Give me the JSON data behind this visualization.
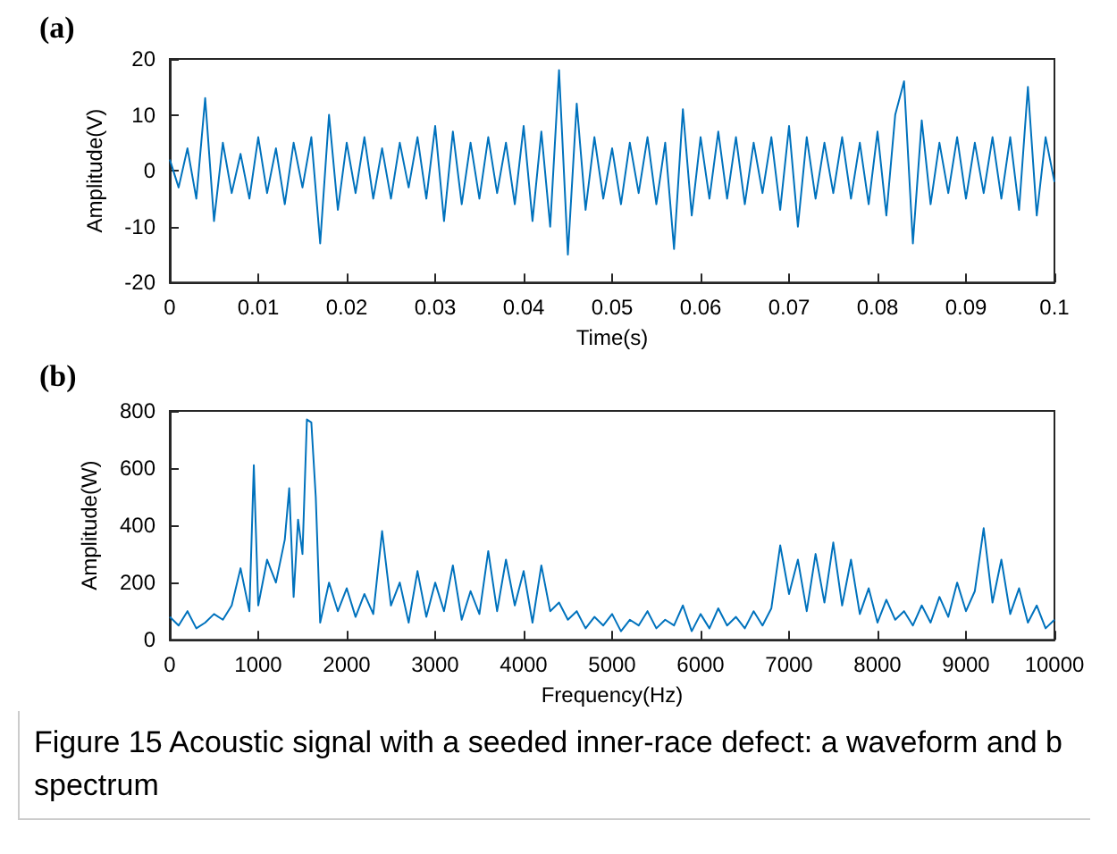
{
  "chart_data": [
    {
      "type": "line",
      "xlabel": "Time(s)",
      "ylabel": "Amplitude(V)",
      "annotations": [
        "(a)"
      ],
      "xlim": [
        0,
        0.1
      ],
      "xticks": [
        0,
        0.01,
        0.02,
        0.03,
        0.04,
        0.05,
        0.06,
        0.07,
        0.08,
        0.09,
        0.1
      ],
      "ylim": [
        -20,
        20
      ],
      "yticks": [
        -20,
        -10,
        0,
        10,
        20
      ],
      "grid": false,
      "marker": "none",
      "line_style": "solid",
      "series": [
        {
          "color": "#0072bd",
          "x": [
            0,
            0.001,
            0.002,
            0.003,
            0.004,
            0.005,
            0.006,
            0.007,
            0.008,
            0.009,
            0.01,
            0.011,
            0.012,
            0.013,
            0.014,
            0.015,
            0.016,
            0.017,
            0.018,
            0.019,
            0.02,
            0.021,
            0.022,
            0.023,
            0.024,
            0.025,
            0.026,
            0.027,
            0.028,
            0.029,
            0.03,
            0.031,
            0.032,
            0.033,
            0.034,
            0.035,
            0.036,
            0.037,
            0.038,
            0.039,
            0.04,
            0.041,
            0.042,
            0.043,
            0.044,
            0.045,
            0.046,
            0.047,
            0.048,
            0.049,
            0.05,
            0.051,
            0.052,
            0.053,
            0.054,
            0.055,
            0.056,
            0.057,
            0.058,
            0.059,
            0.06,
            0.061,
            0.062,
            0.063,
            0.064,
            0.065,
            0.066,
            0.067,
            0.068,
            0.069,
            0.07,
            0.071,
            0.072,
            0.073,
            0.074,
            0.075,
            0.076,
            0.077,
            0.078,
            0.079,
            0.08,
            0.081,
            0.082,
            0.083,
            0.084,
            0.085,
            0.086,
            0.087,
            0.088,
            0.089,
            0.09,
            0.091,
            0.092,
            0.093,
            0.094,
            0.095,
            0.096,
            0.097,
            0.098,
            0.099,
            0.1
          ],
          "values": [
            2,
            -3,
            4,
            -5,
            13,
            -9,
            5,
            -4,
            3,
            -5,
            6,
            -4,
            4,
            -6,
            5,
            -3,
            6,
            -13,
            10,
            -7,
            5,
            -4,
            6,
            -5,
            4,
            -5,
            5,
            -3,
            6,
            -5,
            8,
            -9,
            7,
            -6,
            5,
            -5,
            6,
            -4,
            5,
            -6,
            8,
            -9,
            7,
            -10,
            18,
            -15,
            12,
            -7,
            6,
            -5,
            4,
            -6,
            5,
            -4,
            6,
            -6,
            5,
            -14,
            11,
            -8,
            6,
            -5,
            7,
            -5,
            6,
            -6,
            5,
            -4,
            6,
            -7,
            8,
            -10,
            6,
            -5,
            5,
            -4,
            6,
            -5,
            5,
            -6,
            7,
            -8,
            10,
            16,
            -13,
            9,
            -6,
            5,
            -4,
            6,
            -5,
            5,
            -4,
            6,
            -5,
            6,
            -7,
            15,
            -8,
            6,
            -2
          ]
        }
      ]
    },
    {
      "type": "line",
      "xlabel": "Frequency(Hz)",
      "ylabel": "Amplitude(W)",
      "annotations": [
        "(b)",
        "Figure 15  Acoustic signal with a seeded inner-race defect: a waveform and b spectrum"
      ],
      "xlim": [
        0,
        10000
      ],
      "xticks": [
        0,
        1000,
        2000,
        3000,
        4000,
        5000,
        6000,
        7000,
        8000,
        9000,
        10000
      ],
      "ylim": [
        0,
        800
      ],
      "yticks": [
        0,
        200,
        400,
        600,
        800
      ],
      "grid": false,
      "marker": "none",
      "line_style": "solid",
      "series": [
        {
          "color": "#0072bd",
          "x": [
            0,
            100,
            200,
            300,
            400,
            500,
            600,
            700,
            800,
            900,
            950,
            1000,
            1100,
            1200,
            1300,
            1350,
            1400,
            1450,
            1500,
            1550,
            1600,
            1650,
            1700,
            1800,
            1900,
            2000,
            2100,
            2200,
            2300,
            2400,
            2500,
            2600,
            2700,
            2800,
            2900,
            3000,
            3100,
            3200,
            3300,
            3400,
            3500,
            3600,
            3700,
            3800,
            3900,
            4000,
            4100,
            4200,
            4300,
            4400,
            4500,
            4600,
            4700,
            4800,
            4900,
            5000,
            5100,
            5200,
            5300,
            5400,
            5500,
            5600,
            5700,
            5800,
            5900,
            6000,
            6100,
            6200,
            6300,
            6400,
            6500,
            6600,
            6700,
            6800,
            6900,
            7000,
            7100,
            7200,
            7300,
            7400,
            7500,
            7600,
            7700,
            7800,
            7900,
            8000,
            8100,
            8200,
            8300,
            8400,
            8500,
            8600,
            8700,
            8800,
            8900,
            9000,
            9100,
            9200,
            9300,
            9400,
            9500,
            9600,
            9700,
            9800,
            9900,
            10000
          ],
          "values": [
            80,
            50,
            100,
            40,
            60,
            90,
            70,
            120,
            250,
            100,
            610,
            120,
            280,
            200,
            350,
            530,
            150,
            420,
            300,
            770,
            760,
            500,
            60,
            200,
            100,
            180,
            80,
            160,
            90,
            380,
            120,
            200,
            60,
            240,
            80,
            200,
            100,
            260,
            70,
            170,
            90,
            310,
            100,
            280,
            120,
            240,
            60,
            260,
            100,
            130,
            70,
            100,
            40,
            80,
            50,
            90,
            30,
            70,
            50,
            100,
            40,
            70,
            50,
            120,
            30,
            90,
            40,
            110,
            50,
            80,
            40,
            100,
            50,
            110,
            330,
            160,
            280,
            100,
            300,
            130,
            340,
            120,
            280,
            90,
            180,
            60,
            140,
            70,
            100,
            50,
            120,
            60,
            150,
            80,
            200,
            100,
            170,
            390,
            130,
            280,
            90,
            180,
            60,
            120,
            40,
            70
          ]
        }
      ]
    }
  ]
}
